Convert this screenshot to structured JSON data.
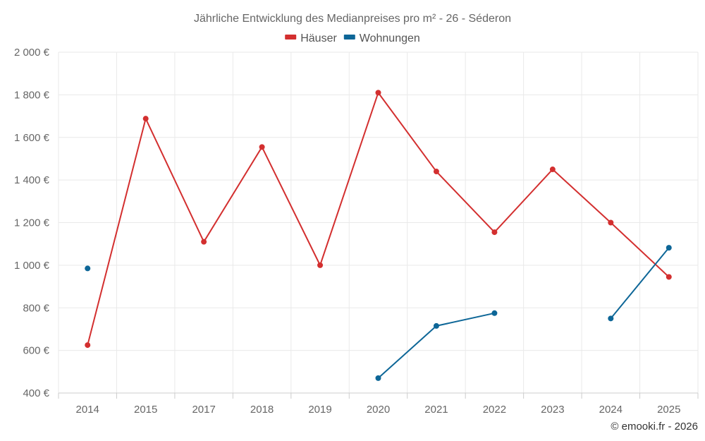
{
  "chart_data": {
    "type": "line",
    "title": "Jährliche Entwicklung des Medianpreises pro m² - 26 - Séderon",
    "categories": [
      "2014",
      "2015",
      "2017",
      "2018",
      "2019",
      "2020",
      "2021",
      "2022",
      "2023",
      "2024",
      "2025"
    ],
    "ylim": [
      400,
      2000
    ],
    "yticks": [
      400,
      600,
      800,
      1000,
      1200,
      1400,
      1600,
      1800,
      2000
    ],
    "ytick_labels": [
      "400 €",
      "600 €",
      "800 €",
      "1 000 €",
      "1 200 €",
      "1 400 €",
      "1 600 €",
      "1 800 €",
      "2 000 €"
    ],
    "series": [
      {
        "name": "Häuser",
        "color": "#d32f2f",
        "values": [
          625,
          1688,
          1110,
          1555,
          1000,
          1810,
          1440,
          1155,
          1450,
          1200,
          945
        ]
      },
      {
        "name": "Wohnungen",
        "color": "#0d6697",
        "values": [
          985,
          null,
          null,
          null,
          null,
          470,
          715,
          775,
          null,
          750,
          1082
        ]
      }
    ],
    "grid": true,
    "legend_position": "top-center"
  },
  "credit": "© emooki.fr - 2026"
}
